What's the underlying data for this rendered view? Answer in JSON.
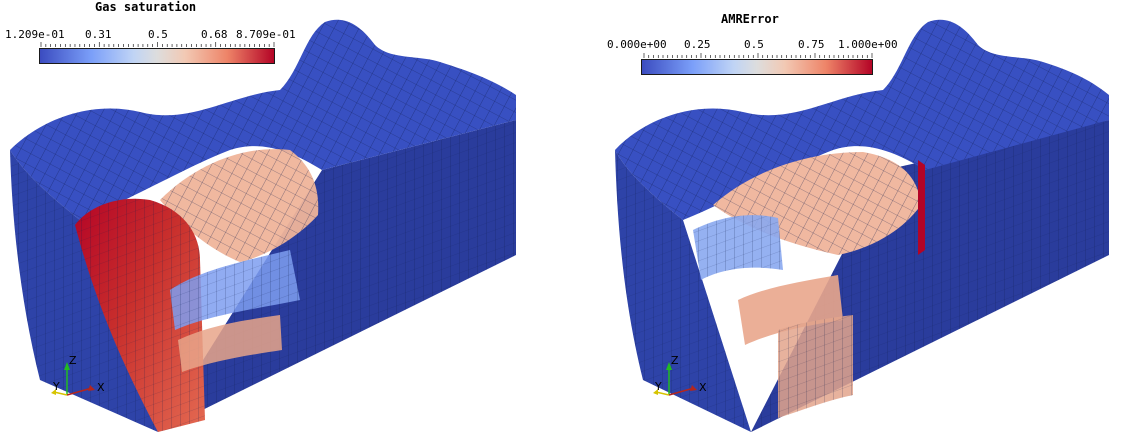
{
  "panels": [
    {
      "colorbar": {
        "title": "Gas saturation",
        "labels": [
          "1.209e-01",
          "0.31",
          "0.5",
          "0.68",
          "8.709e-01"
        ]
      },
      "axes": {
        "x": "X",
        "y": "Y",
        "z": "Z"
      }
    },
    {
      "colorbar": {
        "title": "AMRError",
        "labels": [
          "0.000e+00",
          "0.25",
          "0.5",
          "0.75",
          "1.000e+00"
        ]
      },
      "axes": {
        "x": "X",
        "y": "Y",
        "z": "Z"
      }
    }
  ],
  "colors": {
    "low": "#3b4cc0",
    "mid": "#dddddd",
    "high": "#b40426",
    "mesh_lines": "#0d1a4a"
  }
}
